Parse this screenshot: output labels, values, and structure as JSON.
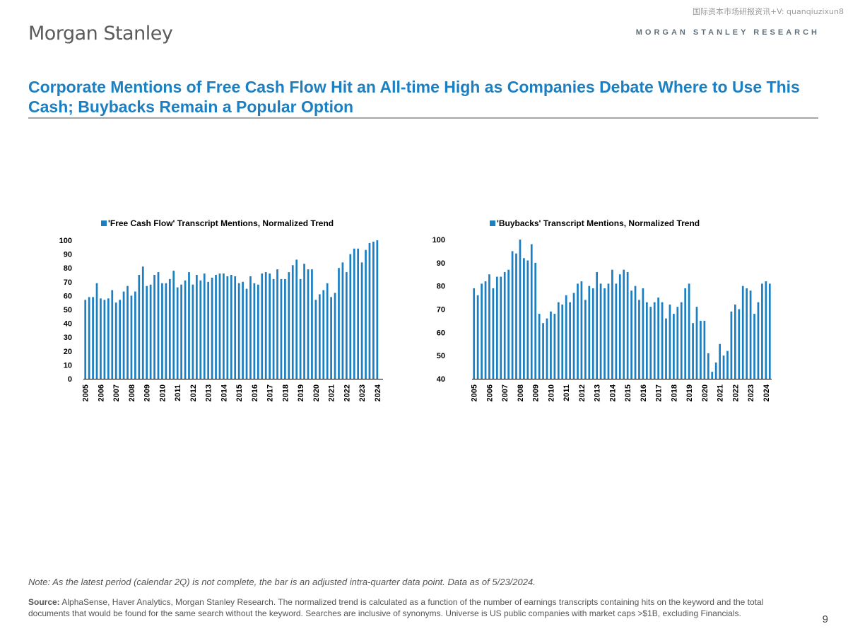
{
  "watermark": "国际资本市场研报资讯+V: quanqiuzixun8",
  "logo": "Morgan Stanley",
  "brand": "MORGAN STANLEY RESEARCH",
  "title": "Corporate Mentions of Free Cash Flow Hit an All-time High as Companies Debate Where to Use This Cash; Buybacks Remain a Popular Option",
  "note": "Note: As the latest period (calendar 2Q) is not complete, the bar is an adjusted intra-quarter data point. Data as of 5/23/2024.",
  "source_label": "Source:",
  "source_text": " AlphaSense, Haver Analytics, Morgan Stanley Research. The normalized trend is calculated as a function of the number of earnings transcripts containing hits on the keyword and the total documents that would be found for the same search without the keyword. Searches are inclusive of synonyms.  Universe is US public companies with market caps >$1B, excluding Financials.",
  "page_number": "9",
  "colors": {
    "bar": "#1b7fc1",
    "title": "#1b7fc1"
  },
  "chart_data": [
    {
      "type": "bar",
      "legend": "'Free Cash Flow' Transcript Mentions, Normalized Trend",
      "legend_position": "top",
      "x_tick_labels": [
        "2005",
        "2006",
        "2007",
        "2008",
        "2009",
        "2010",
        "2011",
        "2012",
        "2013",
        "2014",
        "2015",
        "2016",
        "2017",
        "2018",
        "2019",
        "2020",
        "2021",
        "2022",
        "2023",
        "2024"
      ],
      "frequency": "quarterly",
      "ylim": [
        0,
        100
      ],
      "yticks": [
        0,
        10,
        20,
        30,
        40,
        50,
        60,
        70,
        80,
        90,
        100
      ],
      "values": [
        57,
        59,
        59,
        69,
        58,
        57,
        58,
        64,
        55,
        57,
        63,
        67,
        60,
        63,
        75,
        81,
        67,
        68,
        75,
        77,
        69,
        69,
        72,
        78,
        66,
        68,
        71,
        77,
        68,
        75,
        71,
        76,
        70,
        73,
        75,
        76,
        76,
        74,
        75,
        74,
        69,
        70,
        65,
        74,
        69,
        68,
        76,
        77,
        76,
        72,
        79,
        72,
        72,
        77,
        82,
        86,
        72,
        83,
        79,
        79,
        57,
        61,
        64,
        69,
        59,
        62,
        80,
        84,
        77,
        90,
        94,
        94,
        84,
        93,
        98,
        99,
        100
      ]
    },
    {
      "type": "bar",
      "legend": "'Buybacks' Transcript Mentions, Normalized Trend",
      "legend_position": "top",
      "x_tick_labels": [
        "2005",
        "2006",
        "2007",
        "2008",
        "2009",
        "2010",
        "2011",
        "2012",
        "2013",
        "2014",
        "2015",
        "2016",
        "2017",
        "2018",
        "2019",
        "2020",
        "2021",
        "2022",
        "2023",
        "2024"
      ],
      "frequency": "quarterly",
      "ylim": [
        40,
        100
      ],
      "yticks": [
        40,
        50,
        60,
        70,
        80,
        90,
        100
      ],
      "values": [
        79,
        76,
        81,
        82,
        85,
        79,
        84,
        84,
        86,
        87,
        95,
        94,
        100,
        92,
        91,
        98,
        90,
        68,
        64,
        66,
        69,
        68,
        73,
        72,
        76,
        73,
        77,
        81,
        82,
        74,
        80,
        79,
        86,
        81,
        79,
        81,
        87,
        81,
        85,
        87,
        86,
        78,
        80,
        74,
        79,
        73,
        71,
        73,
        75,
        73,
        66,
        72,
        68,
        71,
        73,
        79,
        81,
        64,
        71,
        65,
        65,
        51,
        43,
        47,
        55,
        50,
        52,
        69,
        72,
        70,
        80,
        79,
        78,
        68,
        73,
        81,
        82,
        81
      ]
    }
  ]
}
